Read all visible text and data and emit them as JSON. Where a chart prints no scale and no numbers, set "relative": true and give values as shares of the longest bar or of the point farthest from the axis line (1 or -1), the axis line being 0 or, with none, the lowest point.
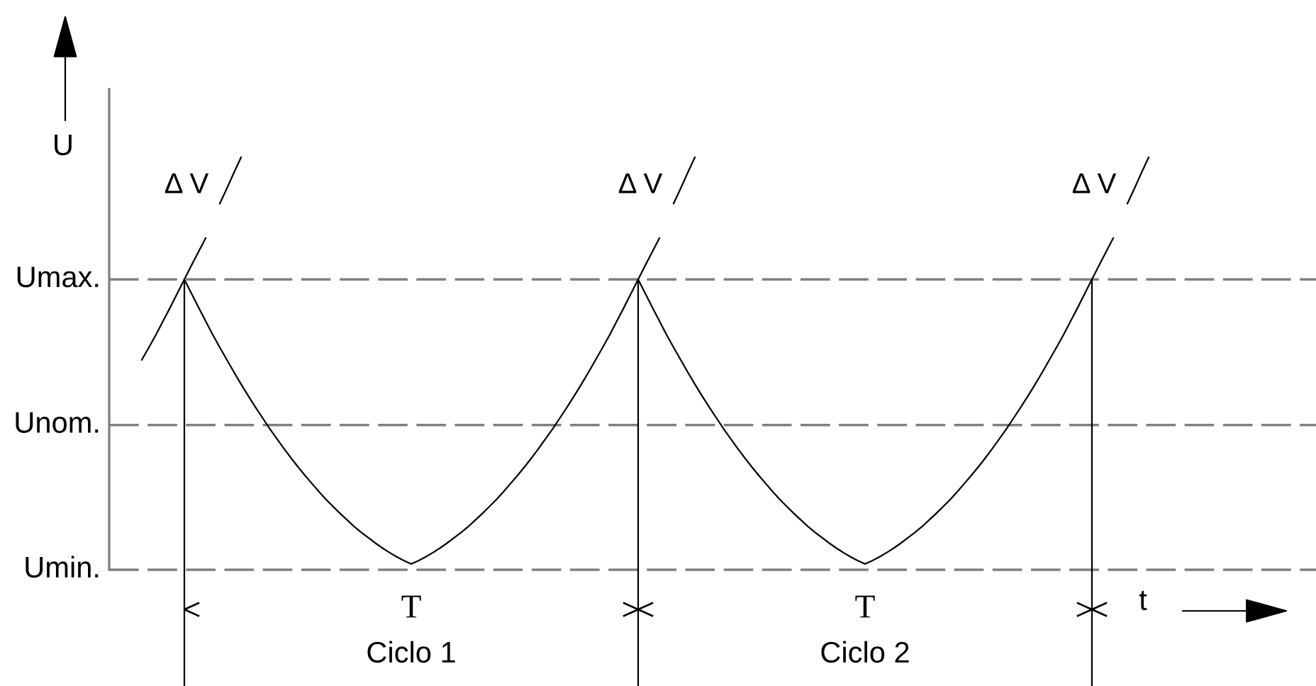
{
  "chart_data": {
    "type": "line",
    "relative": true,
    "xlabel": "t",
    "ylabel": "U",
    "annotations": [
      "Δ V",
      "Δ V",
      "Δ V",
      "T",
      "T",
      "Ciclo 1",
      "Ciclo 2"
    ],
    "ref_lines": [
      {
        "axis": "y",
        "value": 0.704,
        "label": "Umax.",
        "color": "#808080",
        "line_style": "dashed"
      },
      {
        "axis": "y",
        "value": 0.351,
        "label": "Unom.",
        "color": "#808080",
        "line_style": "dashed"
      },
      {
        "axis": "y",
        "value": 0,
        "label": "Umin.",
        "color": "#808080",
        "line_style": "dashed"
      }
    ],
    "categories": [
      null,
      null,
      null,
      null,
      null,
      null,
      null,
      null,
      null,
      null,
      null,
      null,
      null,
      null,
      null,
      null,
      null,
      null,
      null,
      null,
      null,
      null,
      null,
      null,
      null,
      null,
      null,
      null,
      null,
      null,
      null,
      null,
      null,
      null,
      null,
      null,
      null,
      null,
      null,
      null,
      null,
      null,
      null,
      null,
      null,
      null,
      null,
      null,
      null,
      null,
      null,
      null,
      null,
      null,
      null,
      null,
      null,
      null,
      null,
      null,
      null,
      null,
      null,
      null,
      null,
      null,
      null,
      null,
      null,
      null,
      null,
      null,
      null,
      null,
      null,
      null,
      null,
      null,
      null,
      null,
      null,
      null,
      null,
      null,
      null,
      null,
      null,
      null,
      null,
      null,
      null,
      null,
      null,
      null,
      null,
      null,
      null,
      null,
      null,
      null,
      null,
      null,
      null,
      null,
      null,
      null,
      null,
      null,
      null,
      null,
      null,
      null,
      null,
      null,
      null,
      null,
      null,
      null,
      null,
      null,
      null,
      null,
      null,
      null,
      null,
      null,
      null,
      null,
      null,
      null,
      null,
      null,
      null,
      null,
      null,
      null,
      null,
      null,
      null,
      null,
      null,
      null,
      null
    ],
    "series": [
      {
        "color": "#000000",
        "values": [
          0.509,
          0.539,
          0.57,
          0.603,
          0.636,
          0.67,
          0.704,
          0.67,
          0.636,
          0.603,
          0.57,
          0.539,
          0.509,
          0.479,
          0.45,
          0.422,
          0.395,
          0.369,
          0.343,
          0.319,
          0.295,
          0.272,
          0.25,
          0.229,
          0.209,
          0.189,
          0.17,
          0.153,
          0.136,
          0.12,
          0.104,
          0.09,
          0.077,
          0.064,
          0.052,
          0.041,
          0.031,
          0.022,
          0.014,
          0.022,
          0.031,
          0.041,
          0.052,
          0.064,
          0.077,
          0.09,
          0.104,
          0.12,
          0.136,
          0.153,
          0.17,
          0.189,
          0.209,
          0.229,
          0.25,
          0.272,
          0.295,
          0.319,
          0.343,
          0.369,
          0.395,
          0.422,
          0.45,
          0.479,
          0.509,
          0.539,
          0.57,
          0.603,
          0.636,
          0.67,
          0.704,
          0.67,
          0.636,
          0.603,
          0.57,
          0.539,
          0.509,
          0.479,
          0.45,
          0.422,
          0.395,
          0.369,
          0.343,
          0.319,
          0.295,
          0.272,
          0.25,
          0.229,
          0.209,
          0.189,
          0.17,
          0.153,
          0.136,
          0.12,
          0.104,
          0.09,
          0.077,
          0.064,
          0.052,
          0.041,
          0.031,
          0.022,
          0.014,
          0.022,
          0.031,
          0.041,
          0.052,
          0.064,
          0.077,
          0.09,
          0.104,
          0.12,
          0.136,
          0.153,
          0.17,
          0.189,
          0.209,
          0.229,
          0.25,
          0.272,
          0.295,
          0.319,
          0.343,
          0.369,
          0.395,
          0.422,
          0.45,
          0.479,
          0.509,
          0.539,
          0.57,
          0.603,
          0.636,
          0.67,
          0.704,
          null,
          null,
          null,
          null,
          null,
          null,
          null,
          null
        ]
      },
      {
        "color": "#000000",
        "values": [
          null,
          null,
          null,
          null,
          null,
          null,
          0.704,
          0.738,
          0.771,
          0.804,
          null,
          0.888,
          0.925,
          0.963,
          1.0,
          null,
          null,
          null,
          null,
          null,
          null,
          null,
          null,
          null,
          null,
          null,
          null,
          null,
          null,
          null,
          null,
          null,
          null,
          null,
          null,
          null,
          null,
          null,
          null,
          null,
          null,
          null,
          null,
          null,
          null,
          null,
          null,
          null,
          null,
          null,
          null,
          null,
          null,
          null,
          null,
          null,
          null,
          null,
          null,
          null,
          null,
          null,
          null,
          null,
          null,
          null,
          null,
          null,
          null,
          null,
          0.704,
          0.738,
          0.771,
          0.804,
          null,
          0.888,
          0.925,
          0.963,
          1.0,
          null,
          null,
          null,
          null,
          null,
          null,
          null,
          null,
          null,
          null,
          null,
          null,
          null,
          null,
          null,
          null,
          null,
          null,
          null,
          null,
          null,
          null,
          null,
          null,
          null,
          null,
          null,
          null,
          null,
          null,
          null,
          null,
          null,
          null,
          null,
          null,
          null,
          null,
          null,
          null,
          null,
          null,
          null,
          null,
          null,
          null,
          null,
          null,
          null,
          null,
          null,
          null,
          null,
          null,
          null,
          0.704,
          0.738,
          0.771,
          0.804,
          null,
          0.888,
          0.925,
          0.963,
          1.0
        ]
      }
    ]
  }
}
